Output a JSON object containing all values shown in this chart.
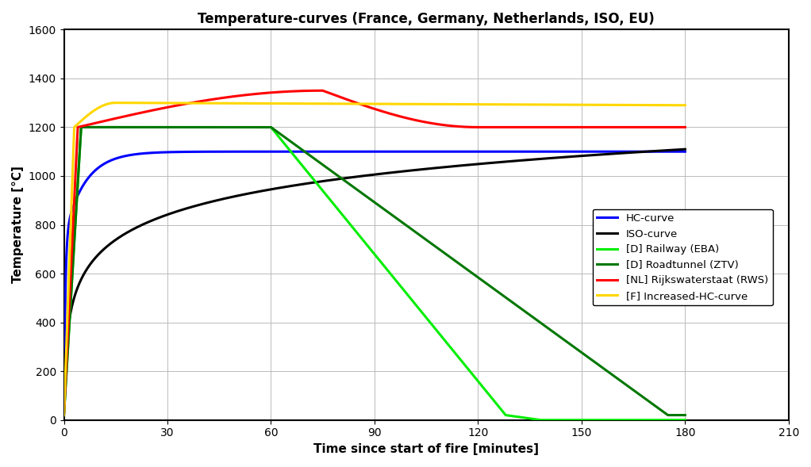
{
  "title": "Temperature-curves (France, Germany, Netherlands, ISO, EU)",
  "xlabel": "Time since start of fire [minutes]",
  "ylabel": "Temperature [°C]",
  "xlim": [
    0,
    210
  ],
  "ylim": [
    0,
    1600
  ],
  "xticks": [
    0,
    30,
    60,
    90,
    120,
    150,
    180,
    210
  ],
  "yticks": [
    0,
    200,
    400,
    600,
    800,
    1000,
    1200,
    1400,
    1600
  ],
  "legend": [
    {
      "label": "HC-curve",
      "color": "#0000FF"
    },
    {
      "label": "ISO-curve",
      "color": "#000000"
    },
    {
      "label": "[D] Railway (EBA)",
      "color": "#00EE00"
    },
    {
      "label": "[D] Roadtunnel (ZTV)",
      "color": "#007700"
    },
    {
      "label": "[NL] Rijkswaterstaat (RWS)",
      "color": "#FF0000"
    },
    {
      "label": "[F] Increased-HC-curve",
      "color": "#FFD700"
    }
  ],
  "bg_color": "#FFFFFF",
  "grid_color": "#BBBBBB",
  "linewidth": 2.2,
  "hc_asymptote": 1080,
  "hc_T0": 20,
  "eba_rise_end": 5,
  "eba_flat_end": 60,
  "eba_drop_end": 128,
  "ztv_rise_end": 5,
  "ztv_flat_end": 60,
  "ztv_drop_end": 175,
  "rws_rise_end": 4,
  "rws_peak": 1350,
  "rws_peak_time": 75,
  "rws_end_time": 120,
  "rws_final": 1200,
  "ihc_rise_end": 3,
  "ihc_peak": 1300,
  "ihc_peak_time": 15,
  "ihc_final": 1290,
  "ihc_end": 180
}
